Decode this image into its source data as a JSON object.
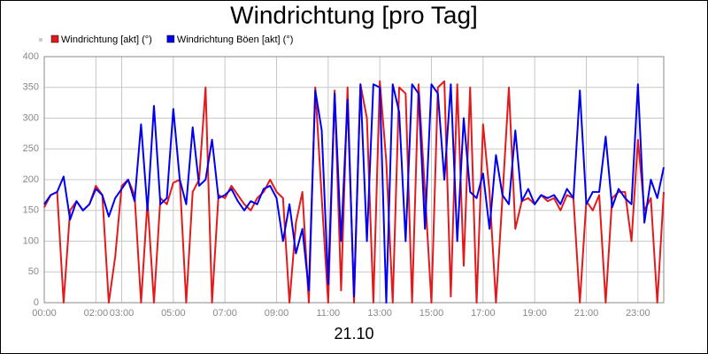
{
  "chart_data": {
    "type": "line",
    "title": "Windrichtung [pro Tag]",
    "x_label": "21.10",
    "x": [
      0,
      0.25,
      0.5,
      0.75,
      1,
      1.25,
      1.5,
      1.75,
      2,
      2.25,
      2.5,
      2.75,
      3,
      3.25,
      3.5,
      3.75,
      4,
      4.25,
      4.5,
      4.75,
      5,
      5.25,
      5.5,
      5.75,
      6,
      6.25,
      6.5,
      6.75,
      7,
      7.25,
      7.5,
      7.75,
      8,
      8.25,
      8.5,
      8.75,
      9,
      9.25,
      9.5,
      9.75,
      10,
      10.25,
      10.5,
      10.75,
      11,
      11.25,
      11.5,
      11.75,
      12,
      12.25,
      12.5,
      12.75,
      13,
      13.25,
      13.5,
      13.75,
      14,
      14.25,
      14.5,
      14.75,
      15,
      15.25,
      15.5,
      15.75,
      16,
      16.25,
      16.5,
      16.75,
      17,
      17.25,
      17.5,
      17.75,
      18,
      18.25,
      18.5,
      18.75,
      19,
      19.25,
      19.5,
      19.75,
      20,
      20.25,
      20.5,
      20.75,
      21,
      21.25,
      21.5,
      21.75,
      22,
      22.25,
      22.5,
      22.75,
      23,
      23.25,
      23.5,
      23.75,
      24
    ],
    "series": [
      {
        "name": "Windrichtung [akt] (°)",
        "color": "#e31a1c",
        "values": [
          155,
          175,
          180,
          0,
          150,
          165,
          150,
          160,
          190,
          175,
          0,
          75,
          190,
          200,
          175,
          0,
          165,
          0,
          170,
          160,
          195,
          200,
          0,
          180,
          200,
          350,
          0,
          175,
          170,
          190,
          175,
          160,
          150,
          170,
          180,
          200,
          180,
          170,
          0,
          130,
          180,
          0,
          350,
          170,
          0,
          345,
          20,
          350,
          0,
          355,
          300,
          0,
          360,
          230,
          0,
          350,
          340,
          0,
          355,
          180,
          0,
          350,
          360,
          10,
          355,
          60,
          350,
          0,
          290,
          180,
          0,
          170,
          350,
          120,
          165,
          170,
          160,
          175,
          165,
          170,
          150,
          175,
          170,
          0,
          165,
          150,
          175,
          0,
          170,
          180,
          180,
          100,
          265,
          150,
          170,
          0,
          180
        ]
      },
      {
        "name": "Windrichtung Böen [akt] (°)",
        "color": "#0000ee",
        "values": [
          160,
          175,
          180,
          205,
          135,
          165,
          150,
          160,
          185,
          175,
          140,
          170,
          185,
          200,
          165,
          290,
          150,
          320,
          160,
          170,
          315,
          200,
          160,
          285,
          190,
          200,
          265,
          170,
          175,
          185,
          165,
          150,
          165,
          160,
          185,
          190,
          170,
          100,
          160,
          80,
          120,
          20,
          345,
          280,
          30,
          340,
          100,
          330,
          10,
          355,
          100,
          355,
          350,
          0,
          355,
          310,
          100,
          355,
          340,
          120,
          355,
          340,
          200,
          355,
          100,
          300,
          180,
          170,
          210,
          120,
          240,
          175,
          160,
          280,
          165,
          185,
          160,
          175,
          170,
          175,
          160,
          185,
          170,
          345,
          160,
          180,
          180,
          270,
          155,
          185,
          170,
          160,
          355,
          130,
          200,
          170,
          220
        ]
      }
    ],
    "xlim": [
      0,
      24
    ],
    "xticks": [
      {
        "value": 0,
        "label": "00:00"
      },
      {
        "value": 2,
        "label": "02:00"
      },
      {
        "value": 3,
        "label": "03:00"
      },
      {
        "value": 5,
        "label": "05:00"
      },
      {
        "value": 7,
        "label": "07:00"
      },
      {
        "value": 9,
        "label": "09:00"
      },
      {
        "value": 11,
        "label": "11:00"
      },
      {
        "value": 13,
        "label": "13:00"
      },
      {
        "value": 15,
        "label": "15:00"
      },
      {
        "value": 17,
        "label": "17:00"
      },
      {
        "value": 19,
        "label": "19:00"
      },
      {
        "value": 21,
        "label": "21:00"
      },
      {
        "value": 23,
        "label": "23:00"
      }
    ],
    "ylim": [
      0,
      400
    ],
    "yticks": [
      0,
      50,
      100,
      150,
      200,
      250,
      300,
      350,
      400
    ],
    "grid": true
  }
}
